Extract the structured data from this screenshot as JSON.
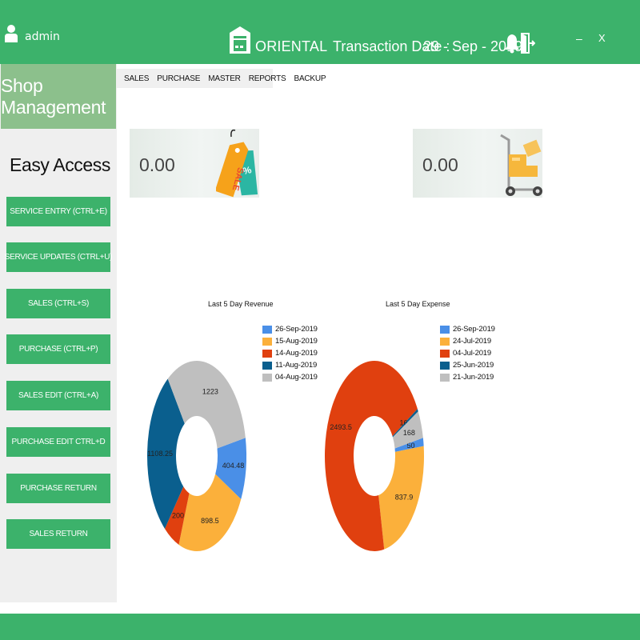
{
  "header": {
    "user_name": "admin",
    "brand": "ORIENTAL",
    "transaction_label": "Transaction Date :",
    "transaction_date": "29 - Sep - 2019",
    "minimize": "–",
    "close": "X"
  },
  "sidebar": {
    "title": "Shop Management",
    "easy_access": "Easy Access",
    "buttons": [
      {
        "label": "SERVICE ENTRY  (CTRL+E)"
      },
      {
        "label": "SERVICE UPDATES  (CTRL+U)"
      },
      {
        "label": "SALES (CTRL+S)"
      },
      {
        "label": "PURCHASE  (CTRL+P)"
      },
      {
        "label": "SALES EDIT  (CTRL+A)"
      },
      {
        "label": "PURCHASE EDIT CTRL+D"
      },
      {
        "label": "PURCHASE RETURN"
      },
      {
        "label": "SALES RETURN"
      }
    ]
  },
  "menu": [
    "SALES",
    "PURCHASE",
    "MASTER",
    "REPORTS",
    "BACKUP"
  ],
  "cards": {
    "sales_total": "0.00",
    "purchase_total": "0.00",
    "sales_icon": "sale-tag-icon",
    "purchase_icon": "hand-truck-boxes-icon"
  },
  "colors": {
    "primary": "#3cb26b",
    "sidebar_header": "#8cc08c",
    "blue": "#4a8fe7",
    "orange": "#fbb03b",
    "red": "#e0400f",
    "navy": "#0a5f8e",
    "gray": "#bfbfbf"
  },
  "chart_data": [
    {
      "type": "pie",
      "title": "Last 5 Day Revenue",
      "legend_position": "top-right",
      "categories": [
        "26-Sep-2019",
        "15-Aug-2019",
        "14-Aug-2019",
        "11-Aug-2019",
        "04-Aug-2019"
      ],
      "values": [
        404.48,
        898.5,
        200,
        1108.25,
        1223
      ],
      "labels": [
        "404.48",
        "898.5",
        "200",
        "1108.25",
        "1223"
      ],
      "colors": [
        "#4a8fe7",
        "#fbb03b",
        "#e0400f",
        "#0a5f8e",
        "#bfbfbf"
      ]
    },
    {
      "type": "pie",
      "title": "Last 5 Day Expense",
      "legend_position": "top-right",
      "categories": [
        "26-Sep-2019",
        "24-Jul-2019",
        "04-Jul-2019",
        "25-Jun-2019",
        "21-Jun-2019"
      ],
      "values": [
        50,
        837.9,
        2493.5,
        16.8,
        168
      ],
      "labels": [
        "50",
        "837.9",
        "2493.5",
        "16.8",
        "168"
      ],
      "colors": [
        "#4a8fe7",
        "#fbb03b",
        "#e0400f",
        "#0a5f8e",
        "#bfbfbf"
      ]
    }
  ]
}
